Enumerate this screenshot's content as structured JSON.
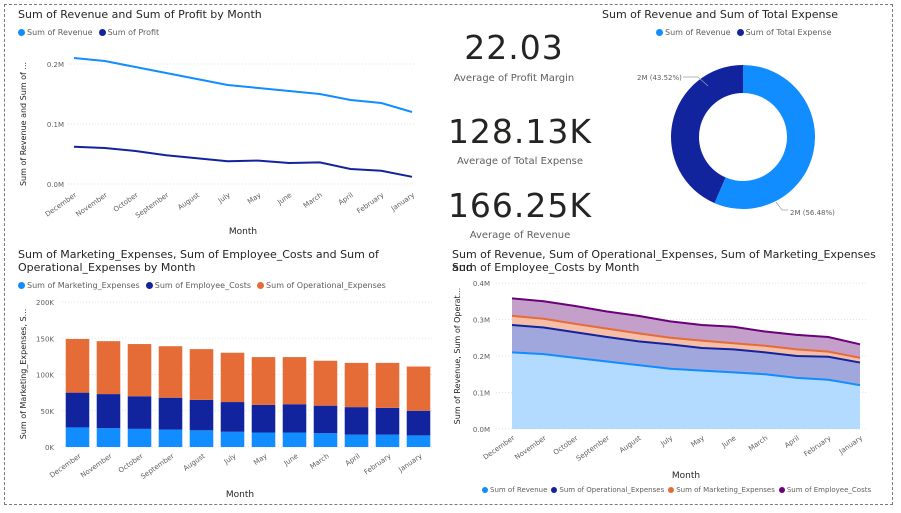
{
  "months": [
    "December",
    "November",
    "October",
    "September",
    "August",
    "July",
    "May",
    "June",
    "March",
    "April",
    "February",
    "January"
  ],
  "colors": {
    "revenue": "#118dff",
    "revenue_area": "#a6d3ff",
    "profit": "#12239e",
    "marketing": "#118dff",
    "employee": "#12239e",
    "operational": "#e66c37",
    "employee_costs_line": "#6b007b",
    "total_expense": "#12239e"
  },
  "line_chart": {
    "title": "Sum of Revenue and Sum of Profit by Month",
    "legend": [
      "Sum of Revenue",
      "Sum of Profit"
    ],
    "ylabel": "Sum of Revenue and Sum of ...",
    "xlabel": "Month",
    "yticks": [
      "0.0M",
      "0.1M",
      "0.2M"
    ]
  },
  "kpis": [
    {
      "value": "22.03",
      "label": "Average of Profit Margin"
    },
    {
      "value": "128.13K",
      "label": "Average of Total Expense"
    },
    {
      "value": "166.25K",
      "label": "Average of Revenue"
    }
  ],
  "donut": {
    "title": "Sum of Revenue and Sum of Total Expense",
    "legend": [
      "Sum of Revenue",
      "Sum of Total Expense"
    ],
    "label_expense": "2M (43.52%)",
    "label_revenue": "2M (56.48%)"
  },
  "bar_chart": {
    "title_line1": "Sum of Marketing_Expenses, Sum of Employee_Costs and Sum of",
    "title_line2": "Operational_Expenses by Month",
    "legend": [
      "Sum of Marketing_Expenses",
      "Sum of Employee_Costs",
      "Sum of Operational_Expenses"
    ],
    "ylabel": "Sum of Marketing_Expenses, S...",
    "xlabel": "Month",
    "yticks": [
      "0K",
      "50K",
      "100K",
      "150K",
      "200K"
    ]
  },
  "area_chart": {
    "title_line1": "Sum of Revenue, Sum of Operational_Expenses, Sum of Marketing_Expenses and",
    "title_line2": "Sum of Employee_Costs by Month",
    "legend": [
      "Sum of Revenue",
      "Sum of Operational_Expenses",
      "Sum of Marketing_Expenses",
      "Sum of Employee_Costs"
    ],
    "ylabel": "Sum of Revenue, Sum of Operat...",
    "xlabel": "Month",
    "yticks": [
      "0.0M",
      "0.1M",
      "0.2M",
      "0.3M",
      "0.4M"
    ]
  },
  "chart_data": [
    {
      "type": "line",
      "title": "Sum of Revenue and Sum of Profit by Month",
      "categories": [
        "December",
        "November",
        "October",
        "September",
        "August",
        "July",
        "May",
        "June",
        "March",
        "April",
        "February",
        "January"
      ],
      "series": [
        {
          "name": "Sum of Revenue",
          "values": [
            0.21,
            0.205,
            0.195,
            0.185,
            0.175,
            0.165,
            0.16,
            0.155,
            0.15,
            0.14,
            0.135,
            0.12
          ]
        },
        {
          "name": "Sum of Profit",
          "values": [
            0.062,
            0.06,
            0.055,
            0.048,
            0.043,
            0.038,
            0.039,
            0.035,
            0.036,
            0.025,
            0.022,
            0.012
          ]
        }
      ],
      "xlabel": "Month",
      "ylabel": "Sum of Revenue and Sum of ...",
      "ylim": [
        0,
        0.23
      ],
      "unit": "M"
    },
    {
      "type": "pie",
      "title": "Sum of Revenue and Sum of Total Expense",
      "categories": [
        "Sum of Revenue",
        "Sum of Total Expense"
      ],
      "values": [
        56.48,
        43.52
      ],
      "labels": [
        "2M (56.48%)",
        "2M (43.52%)"
      ]
    },
    {
      "type": "bar",
      "stacked": true,
      "title": "Sum of Marketing_Expenses, Sum of Employee_Costs and Sum of Operational_Expenses by Month",
      "categories": [
        "December",
        "November",
        "October",
        "September",
        "August",
        "July",
        "May",
        "June",
        "March",
        "April",
        "February",
        "January"
      ],
      "series": [
        {
          "name": "Sum of Marketing_Expenses",
          "values": [
            27,
            26,
            25,
            24,
            23,
            21,
            20,
            20,
            19,
            17,
            17,
            16
          ]
        },
        {
          "name": "Sum of Employee_Costs",
          "values": [
            48,
            47,
            45,
            44,
            42,
            41,
            38,
            39,
            38,
            38,
            37,
            34
          ]
        },
        {
          "name": "Sum of Operational_Expenses",
          "values": [
            74,
            73,
            72,
            71,
            70,
            68,
            66,
            65,
            62,
            61,
            62,
            61
          ]
        }
      ],
      "xlabel": "Month",
      "ylabel": "Sum of Marketing_Expenses, S...",
      "ylim": [
        0,
        200
      ],
      "unit": "K"
    },
    {
      "type": "area",
      "stacked": false,
      "title": "Sum of Revenue, Sum of Operational_Expenses, Sum of Marketing_Expenses and Sum of Employee_Costs by Month",
      "categories": [
        "December",
        "November",
        "October",
        "September",
        "August",
        "July",
        "May",
        "June",
        "March",
        "April",
        "February",
        "January"
      ],
      "series": [
        {
          "name": "Sum of Revenue",
          "values": [
            0.21,
            0.205,
            0.195,
            0.185,
            0.175,
            0.165,
            0.16,
            0.155,
            0.15,
            0.14,
            0.135,
            0.12
          ]
        },
        {
          "name": "Sum of Operational_Expenses",
          "values": [
            0.285,
            0.278,
            0.265,
            0.252,
            0.24,
            0.232,
            0.222,
            0.218,
            0.21,
            0.2,
            0.198,
            0.182
          ]
        },
        {
          "name": "Sum of Marketing_Expenses",
          "values": [
            0.31,
            0.302,
            0.288,
            0.275,
            0.262,
            0.25,
            0.242,
            0.235,
            0.228,
            0.218,
            0.212,
            0.195
          ]
        },
        {
          "name": "Sum of Employee_Costs",
          "values": [
            0.358,
            0.35,
            0.337,
            0.322,
            0.31,
            0.295,
            0.285,
            0.28,
            0.267,
            0.258,
            0.252,
            0.232
          ]
        }
      ],
      "xlabel": "Month",
      "ylabel": "Sum of Revenue, Sum of Operat...",
      "ylim": [
        0,
        0.4
      ],
      "unit": "M"
    }
  ]
}
